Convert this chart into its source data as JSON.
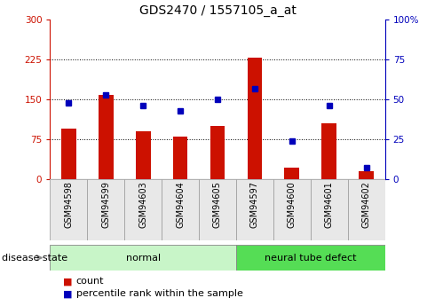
{
  "title": "GDS2470 / 1557105_a_at",
  "samples": [
    "GSM94598",
    "GSM94599",
    "GSM94603",
    "GSM94604",
    "GSM94605",
    "GSM94597",
    "GSM94600",
    "GSM94601",
    "GSM94602"
  ],
  "counts": [
    95,
    158,
    90,
    80,
    100,
    228,
    22,
    105,
    14
  ],
  "percentiles": [
    48,
    53,
    46,
    43,
    50,
    57,
    24,
    46,
    7
  ],
  "groups": [
    {
      "label": "normal",
      "start": 0,
      "end": 5,
      "color": "#c8f5c8"
    },
    {
      "label": "neural tube defect",
      "start": 5,
      "end": 9,
      "color": "#55dd55"
    }
  ],
  "left_ylim": [
    0,
    300
  ],
  "right_ylim": [
    0,
    100
  ],
  "left_yticks": [
    0,
    75,
    150,
    225,
    300
  ],
  "right_yticks": [
    0,
    25,
    50,
    75,
    100
  ],
  "left_yticklabels": [
    "0",
    "75",
    "150",
    "225",
    "300"
  ],
  "right_yticklabels": [
    "0",
    "25",
    "50",
    "75",
    "100%"
  ],
  "bar_color": "#cc1100",
  "dot_color": "#0000bb",
  "bg_color": "#ffffff",
  "plot_bg": "#ffffff",
  "legend_count_label": "count",
  "legend_pct_label": "percentile rank within the sample",
  "disease_state_label": "disease state",
  "title_fontsize": 10,
  "tick_fontsize": 7.5,
  "sample_fontsize": 7,
  "group_fontsize": 8
}
